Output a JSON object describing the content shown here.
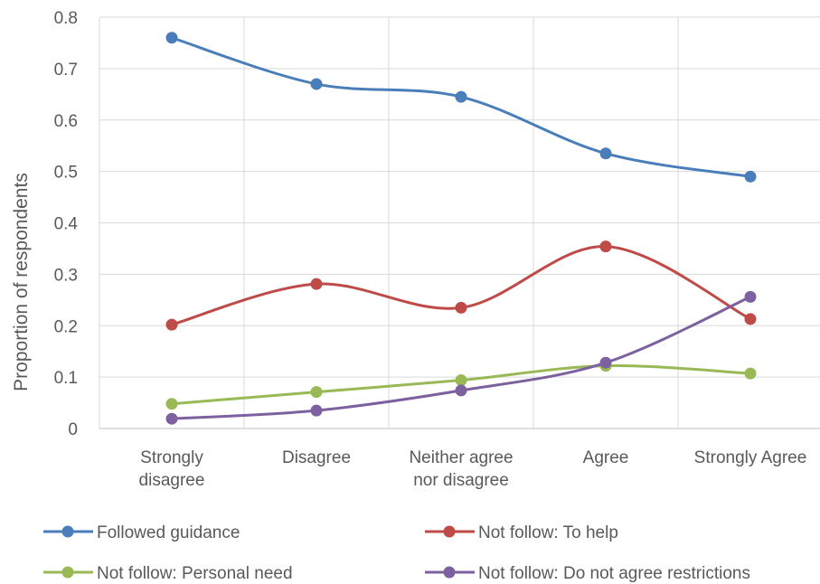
{
  "chart_data": {
    "type": "line",
    "title": "",
    "xlabel": "",
    "ylabel": "Proportion of respondents",
    "ylim": [
      0,
      0.8
    ],
    "yticks": [
      "0",
      "0.1",
      "0.2",
      "0.3",
      "0.4",
      "0.5",
      "0.6",
      "0.7",
      "0.8"
    ],
    "categories": [
      [
        "Strongly",
        "disagree"
      ],
      [
        "Disagree"
      ],
      [
        "Neither agree",
        "nor disagree"
      ],
      [
        "Agree"
      ],
      [
        "Strongly Agree"
      ]
    ],
    "grid": "both",
    "smooth": true,
    "legend_position": "bottom",
    "series": [
      {
        "name": "Followed guidance",
        "color": "#4a7ebb",
        "values": [
          0.76,
          0.67,
          0.645,
          0.535,
          0.49
        ]
      },
      {
        "name": "Not follow: To help",
        "color": "#be4b48",
        "values": [
          0.202,
          0.281,
          0.235,
          0.354,
          0.213
        ]
      },
      {
        "name": "Not follow: Personal need",
        "color": "#98b954",
        "values": [
          0.048,
          0.071,
          0.094,
          0.122,
          0.107
        ]
      },
      {
        "name": "Not follow: Do not agree restrictions",
        "color": "#7d60a0",
        "values": [
          0.019,
          0.035,
          0.074,
          0.128,
          0.256
        ]
      }
    ]
  }
}
